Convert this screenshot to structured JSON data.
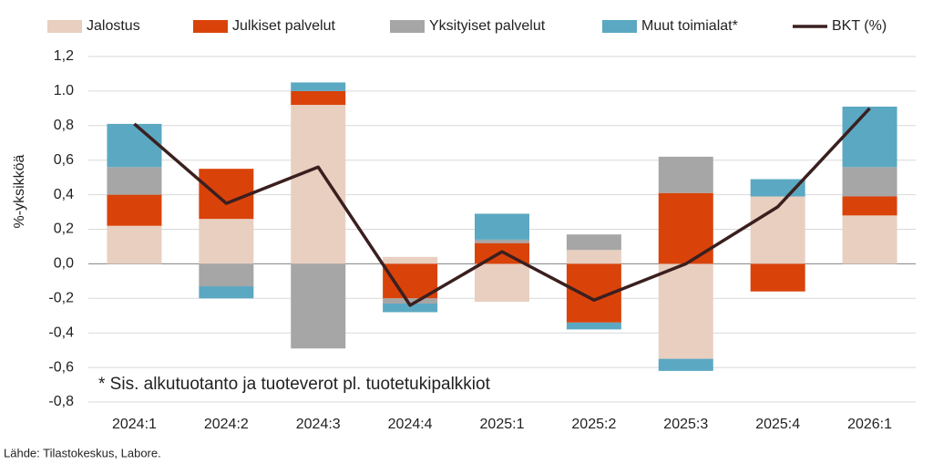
{
  "chart_data": {
    "type": "bar",
    "stacked": true,
    "ylabel": "%-yksikköä",
    "annotation": "* Sis. alkutuotanto ja tuoteverot pl. tuotetukipalkkiot",
    "source": "Lähde: Tilastokeskus, Labore.",
    "categories": [
      "2024:1",
      "2024:2",
      "2024:3",
      "2024:4",
      "2025:1",
      "2025:2",
      "2025:3",
      "2025:4",
      "2026:1"
    ],
    "series": [
      {
        "name": "Jalostus",
        "color": "#e8cfc0",
        "values": [
          0.22,
          0.26,
          0.92,
          0.04,
          -0.22,
          0.08,
          -0.55,
          0.39,
          0.28
        ]
      },
      {
        "name": "Julkiset palvelut",
        "color": "#d9430a",
        "values": [
          0.18,
          0.29,
          0.08,
          -0.2,
          0.12,
          -0.34,
          0.41,
          -0.16,
          0.11
        ]
      },
      {
        "name": "Yksityiset palvelut",
        "color": "#a6a6a6",
        "values": [
          0.16,
          -0.13,
          -0.49,
          -0.03,
          0.02,
          0.09,
          0.21,
          0,
          0.17
        ]
      },
      {
        "name": "Muut toimialat*",
        "color": "#5ba8c2",
        "values": [
          0.25,
          -0.07,
          0.05,
          -0.05,
          0.15,
          -0.04,
          -0.07,
          0.1,
          0.35
        ]
      },
      {
        "name": "BKT (%)",
        "type": "line",
        "color": "#3b1f1f",
        "values": [
          0.81,
          0.35,
          0.56,
          -0.24,
          0.07,
          -0.21,
          0.0,
          0.33,
          0.9
        ]
      }
    ],
    "ylim": [
      -0.8,
      1.2
    ],
    "yticks": [
      {
        "value": -0.8,
        "label": "-0,8"
      },
      {
        "value": -0.6,
        "label": "-0,6"
      },
      {
        "value": -0.4,
        "label": "-0,4"
      },
      {
        "value": -0.2,
        "label": "-0,2"
      },
      {
        "value": 0,
        "label": "0,0"
      },
      {
        "value": 0.2,
        "label": "0,2"
      },
      {
        "value": 0.4,
        "label": "0,4"
      },
      {
        "value": 0.6,
        "label": "0,6"
      },
      {
        "value": 0.8,
        "label": "0,8"
      },
      {
        "value": 1,
        "label": "1.0"
      },
      {
        "value": 1.2,
        "label": "1,2"
      }
    ],
    "grid": true
  }
}
